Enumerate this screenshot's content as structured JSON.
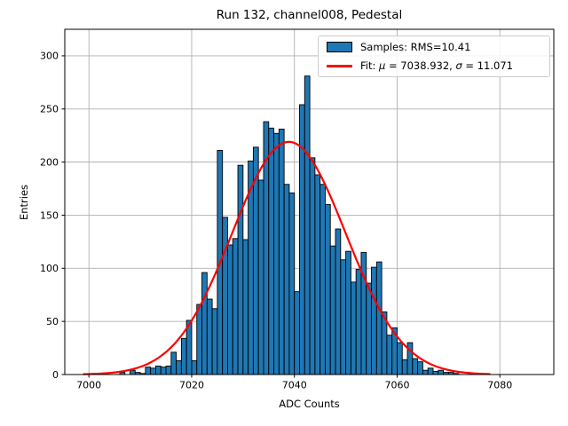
{
  "figure": {
    "title": "Run 132, channel008, Pedestal",
    "xlabel": "ADC Counts",
    "ylabel": "Entries"
  },
  "legend": {
    "samples_label": "Samples: RMS=10.41",
    "fit_prefix": "Fit: ",
    "fit_mu_symbol": "μ",
    "fit_mu_rest": " = 7038.932, ",
    "fit_sigma_symbol": "σ",
    "fit_sigma_rest": " = 11.071"
  },
  "chart_data": {
    "type": "bar",
    "subtype": "histogram-with-gaussian-fit",
    "title": "Run 132, channel008, Pedestal",
    "xlabel": "ADC Counts",
    "ylabel": "Entries",
    "xlim": [
      6995.3,
      7090.5
    ],
    "ylim": [
      0,
      325
    ],
    "xticks": [
      7000,
      7020,
      7040,
      7060,
      7080
    ],
    "yticks": [
      0,
      50,
      100,
      150,
      200,
      250,
      300
    ],
    "grid": true,
    "legend_position": "upper right",
    "bin_start": 7006,
    "bin_width": 1,
    "bar_values": [
      2,
      0,
      4,
      2,
      1,
      7,
      6,
      8,
      7,
      8,
      21,
      13,
      34,
      51,
      13,
      66,
      96,
      71,
      62,
      211,
      148,
      122,
      128,
      197,
      127,
      201,
      214,
      183,
      238,
      232,
      227,
      231,
      179,
      171,
      78,
      254,
      281,
      204,
      188,
      179,
      160,
      121,
      137,
      108,
      116,
      87,
      99,
      115,
      86,
      101,
      106,
      59,
      37,
      44,
      30,
      14,
      30,
      15,
      12,
      4,
      6,
      3,
      4,
      2,
      2,
      1
    ],
    "series": [
      {
        "name": "Samples: RMS=10.41",
        "style": "histogram",
        "rms": 10.41
      },
      {
        "name": "Fit: μ = 7038.932, σ = 11.071",
        "style": "line",
        "fit": {
          "shape": "gaussian",
          "mu": 7038.932,
          "sigma": 11.071,
          "amplitude": 219,
          "x_start": 6999,
          "x_end": 7078
        }
      }
    ],
    "colors": {
      "bar_fill": "#1f77b4",
      "bar_edge": "#000000",
      "fit_line": "#ff0000",
      "grid": "#b0b0b0",
      "axes": "#000000",
      "background": "#ffffff"
    }
  }
}
